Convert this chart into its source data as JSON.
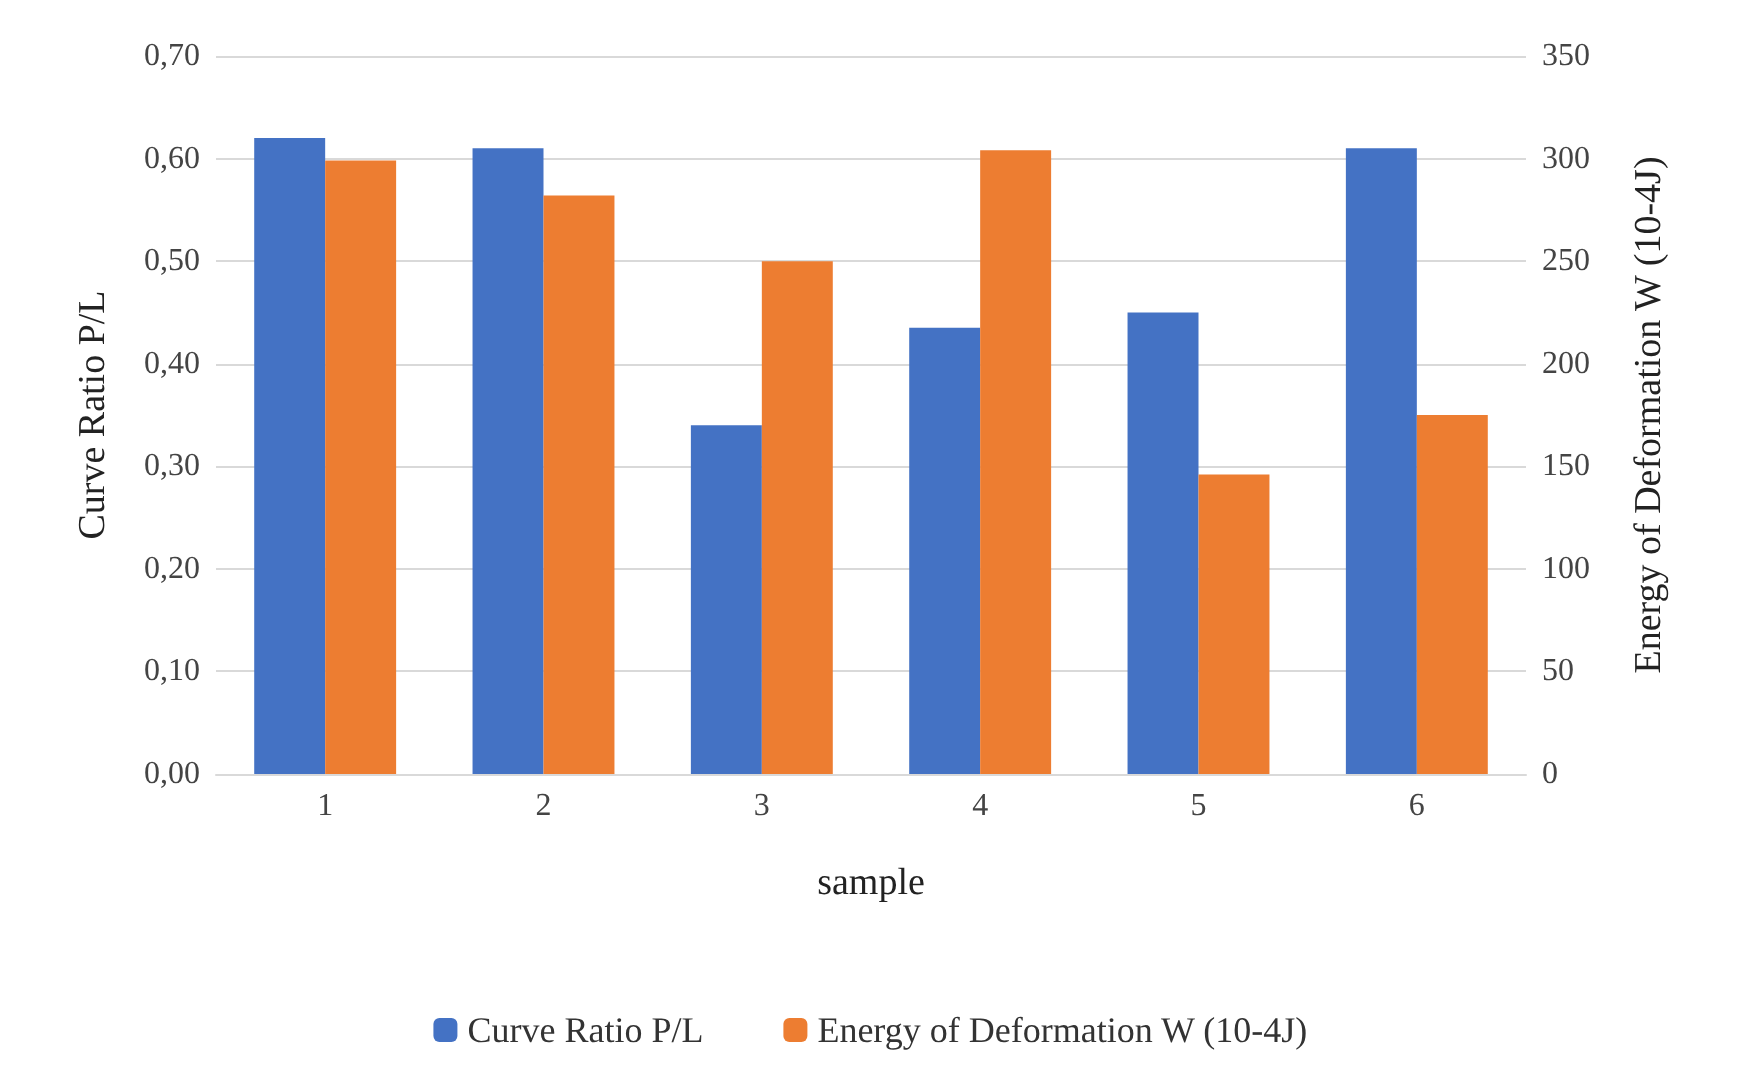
{
  "chart_data": {
    "type": "bar",
    "xlabel": "sample",
    "ylabel": "Curve Ratio P/L",
    "y2label": "Energy of Deformation W (10-4J)",
    "categories": [
      "1",
      "2",
      "3",
      "4",
      "5",
      "6"
    ],
    "series": [
      {
        "name": "Curve Ratio P/L",
        "color": "#4472c4",
        "values": [
          0.62,
          0.61,
          0.34,
          0.435,
          0.45,
          0.61
        ]
      },
      {
        "name": "Energy of Deformation W (10-4J)",
        "color": "#ed7d31",
        "axis": "y2",
        "values": [
          299,
          282,
          250,
          304,
          146,
          175
        ]
      }
    ],
    "ylim": [
      0,
      0.7
    ],
    "yticks": [
      {
        "value": 0,
        "label": "0,00"
      },
      {
        "value": 0.1,
        "label": "0,10"
      },
      {
        "value": 0.2,
        "label": "0,20"
      },
      {
        "value": 0.3,
        "label": "0,30"
      },
      {
        "value": 0.4,
        "label": "0,40"
      },
      {
        "value": 0.5,
        "label": "0,50"
      },
      {
        "value": 0.6,
        "label": "0,60"
      },
      {
        "value": 0.7,
        "label": "0,70"
      }
    ],
    "y2lim": [
      0,
      350
    ],
    "y2ticks": [
      0,
      50,
      100,
      150,
      200,
      250,
      300,
      350
    ],
    "grid": "y",
    "legend": "bottom"
  }
}
